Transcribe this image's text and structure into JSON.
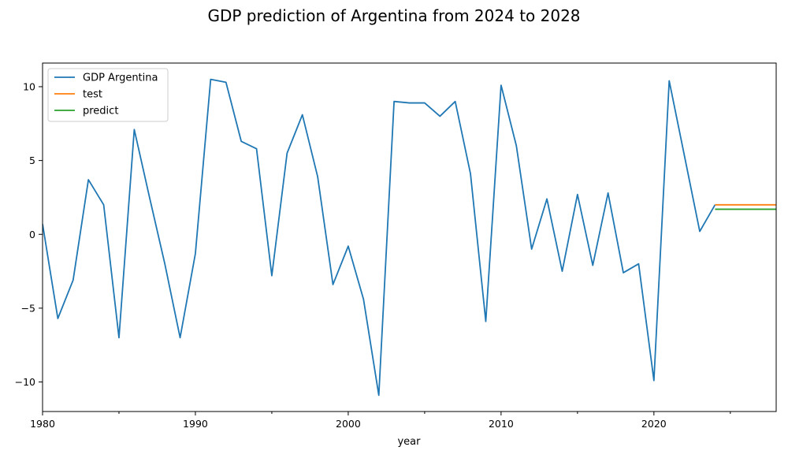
{
  "chart_data": {
    "type": "line",
    "title": "GDP prediction of Argentina from 2024 to 2028",
    "xlabel": "year",
    "ylabel": "",
    "xlim": [
      1980,
      2028
    ],
    "ylim": [
      -12,
      11.6
    ],
    "x_ticks": [
      1980,
      1990,
      2000,
      2010,
      2020
    ],
    "y_ticks": [
      -10,
      -5,
      0,
      5,
      10
    ],
    "legend_position": "top-left",
    "grid": false,
    "series": [
      {
        "name": "GDP Argentina",
        "color": "#1f77b4",
        "x": [
          1980,
          1981,
          1982,
          1983,
          1984,
          1985,
          1986,
          1987,
          1988,
          1989,
          1990,
          1991,
          1992,
          1993,
          1994,
          1995,
          1996,
          1997,
          1998,
          1999,
          2000,
          2001,
          2002,
          2003,
          2004,
          2005,
          2006,
          2007,
          2008,
          2009,
          2010,
          2011,
          2012,
          2013,
          2014,
          2015,
          2016,
          2017,
          2018,
          2019,
          2020,
          2021,
          2022,
          2023,
          2024
        ],
        "y": [
          0.7,
          -5.7,
          -3.1,
          3.7,
          2.0,
          -7.0,
          7.1,
          2.5,
          -2.0,
          -7.0,
          -1.3,
          10.5,
          10.3,
          6.3,
          5.8,
          -2.8,
          5.5,
          8.1,
          3.9,
          -3.4,
          -0.8,
          -4.4,
          -10.9,
          9.0,
          8.9,
          8.9,
          8.0,
          9.0,
          4.1,
          -5.9,
          10.1,
          6.0,
          -1.0,
          2.4,
          -2.5,
          2.7,
          -2.1,
          2.8,
          -2.6,
          -2.0,
          -9.9,
          10.4,
          5.3,
          0.2,
          2.0
        ]
      },
      {
        "name": "test",
        "color": "#ff7f0e",
        "x": [
          2024,
          2025,
          2026,
          2027,
          2028
        ],
        "y": [
          2.0,
          2.0,
          2.0,
          2.0,
          2.0
        ]
      },
      {
        "name": "predict",
        "color": "#2ca02c",
        "x": [
          2024,
          2025,
          2026,
          2027,
          2028
        ],
        "y": [
          1.7,
          1.7,
          1.7,
          1.7,
          1.7
        ]
      }
    ]
  }
}
